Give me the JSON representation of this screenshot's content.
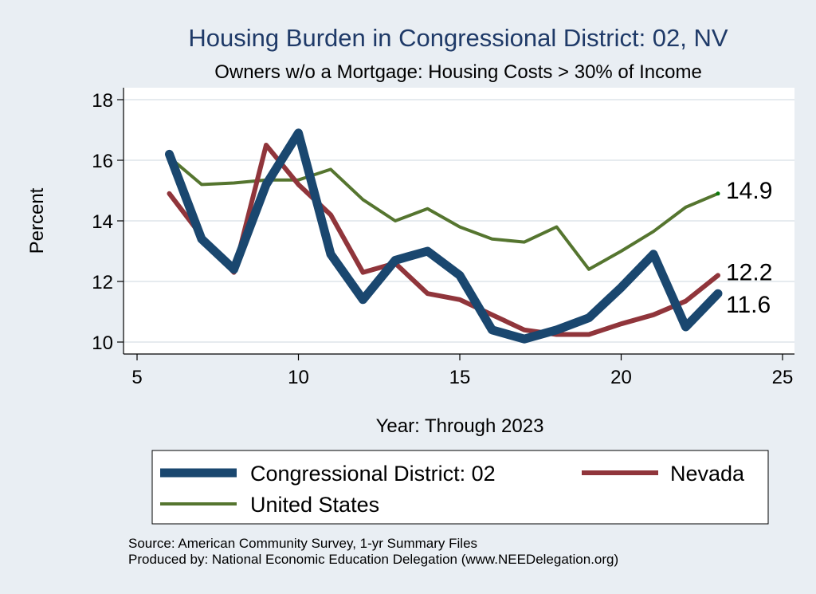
{
  "chart_data": {
    "type": "line",
    "title": "Housing Burden in Congressional District:  02, NV",
    "subtitle": "Owners w/o a Mortgage: Housing Costs > 30% of Income",
    "xlabel": "Year: Through 2023",
    "ylabel": "Percent",
    "xlim": [
      5,
      25
    ],
    "ylim": [
      10,
      18
    ],
    "xticks": [
      5,
      10,
      15,
      20,
      25
    ],
    "yticks": [
      10,
      12,
      14,
      16,
      18
    ],
    "grid": true,
    "legend_position": "bottom",
    "series": [
      {
        "name": "Congressional District:  02",
        "color": "#1a476f",
        "x": [
          6,
          7,
          8,
          9,
          10,
          11,
          12,
          13,
          14,
          15,
          16,
          17,
          18,
          19,
          20,
          21,
          22,
          23
        ],
        "y": [
          16.2,
          13.4,
          12.4,
          15.2,
          16.9,
          12.9,
          11.4,
          12.7,
          13.0,
          12.2,
          10.4,
          10.1,
          10.4,
          10.8,
          11.8,
          12.9,
          10.5,
          11.6
        ],
        "end_label": "11.6"
      },
      {
        "name": "Nevada",
        "color": "#90353b",
        "x": [
          6,
          7,
          8,
          9,
          10,
          11,
          12,
          13,
          14,
          15,
          16,
          17,
          18,
          19,
          20,
          21,
          22,
          23
        ],
        "y": [
          14.9,
          13.5,
          12.3,
          16.5,
          15.2,
          14.2,
          12.3,
          12.6,
          11.6,
          11.4,
          10.9,
          10.4,
          10.25,
          10.25,
          10.6,
          10.9,
          11.35,
          12.2
        ],
        "end_label": "12.2"
      },
      {
        "name": "United States",
        "color": "#55752f",
        "x": [
          6,
          7,
          8,
          9,
          10,
          11,
          12,
          13,
          14,
          15,
          16,
          17,
          18,
          19,
          20,
          21,
          22,
          23
        ],
        "y": [
          16.1,
          15.2,
          15.25,
          15.35,
          15.35,
          15.7,
          14.7,
          14.0,
          14.4,
          13.8,
          13.4,
          13.3,
          13.8,
          12.4,
          13.0,
          13.65,
          14.45,
          14.9
        ],
        "end_label": "14.9"
      }
    ]
  },
  "source_line1": "Source: American Community Survey, 1-yr Summary Files",
  "source_line2": "Produced by: National Economic Education Delegation (www.NEEDelegation.org)"
}
